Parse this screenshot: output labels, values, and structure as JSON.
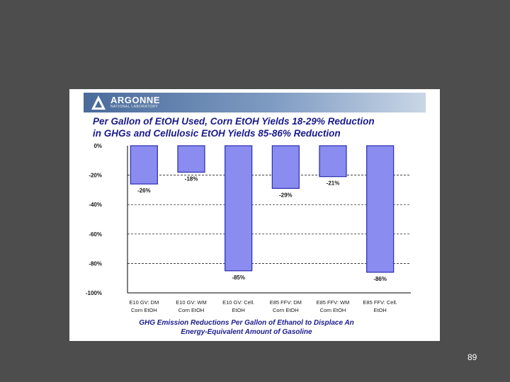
{
  "slide": {
    "logo": {
      "name": "ARGONNE",
      "subtext": "NATIONAL LABORATORY"
    },
    "title_lines": [
      "Per Gallon of EtOH Used, Corn EtOH Yields 18-29% Reduction",
      "in GHGs and Cellulosic EtOH Yields 85-86% Reduction"
    ],
    "caption_lines": [
      "GHG Emission Reductions Per Gallon of Ethanol to Displace An",
      "Energy-Equivalent Amount of Gasoline"
    ],
    "page_number": "89"
  },
  "colors": {
    "bar_fill": "#8a8cf0",
    "bar_edge": "#2b2bb0",
    "title": "#1a1a8c",
    "background": "#4d4d4d"
  },
  "chart_data": {
    "type": "bar",
    "categories": [
      [
        "E10 GV: DM",
        "Corn EtOH"
      ],
      [
        "E10 GV: WM",
        "Corn EtOH"
      ],
      [
        "E10 GV: Cell.",
        "EtOH"
      ],
      [
        "E85 FFV: DM",
        "Corn EtOH"
      ],
      [
        "E85 FFV: WM",
        "Corn EtOH"
      ],
      [
        "E85 FFV: Cell.",
        "EtOH"
      ]
    ],
    "values": [
      -26,
      -18,
      -85,
      -29,
      -21,
      -86
    ],
    "data_labels": [
      "-26%",
      "-18%",
      "-85%",
      "-29%",
      "-21%",
      "-86%"
    ],
    "y_ticks": [
      0,
      -20,
      -40,
      -60,
      -80,
      -100
    ],
    "y_tick_labels": [
      "0%",
      "-20%",
      "-40%",
      "-60%",
      "-80%",
      "-100%"
    ],
    "ylim": [
      -100,
      0
    ],
    "grid": true
  }
}
